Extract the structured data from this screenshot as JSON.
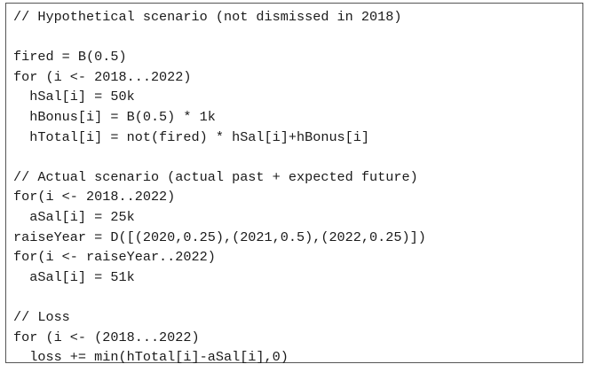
{
  "code": {
    "lines": [
      "// Hypothetical scenario (not dismissed in 2018)",
      "",
      "fired = B(0.5)",
      "for (i <- 2018...2022)",
      "  hSal[i] = 50k",
      "  hBonus[i] = B(0.5) * 1k",
      "  hTotal[i] = not(fired) * hSal[i]+hBonus[i]",
      "",
      "// Actual scenario (actual past + expected future)",
      "for(i <- 2018..2022)",
      "  aSal[i] = 25k",
      "raiseYear = D([(2020,0.25),(2021,0.5),(2022,0.25)])",
      "for(i <- raiseYear..2022)",
      "  aSal[i] = 51k",
      "",
      "// Loss",
      "for (i <- (2018...2022)",
      "  loss += min(hTotal[i]-aSal[i],0)"
    ]
  }
}
